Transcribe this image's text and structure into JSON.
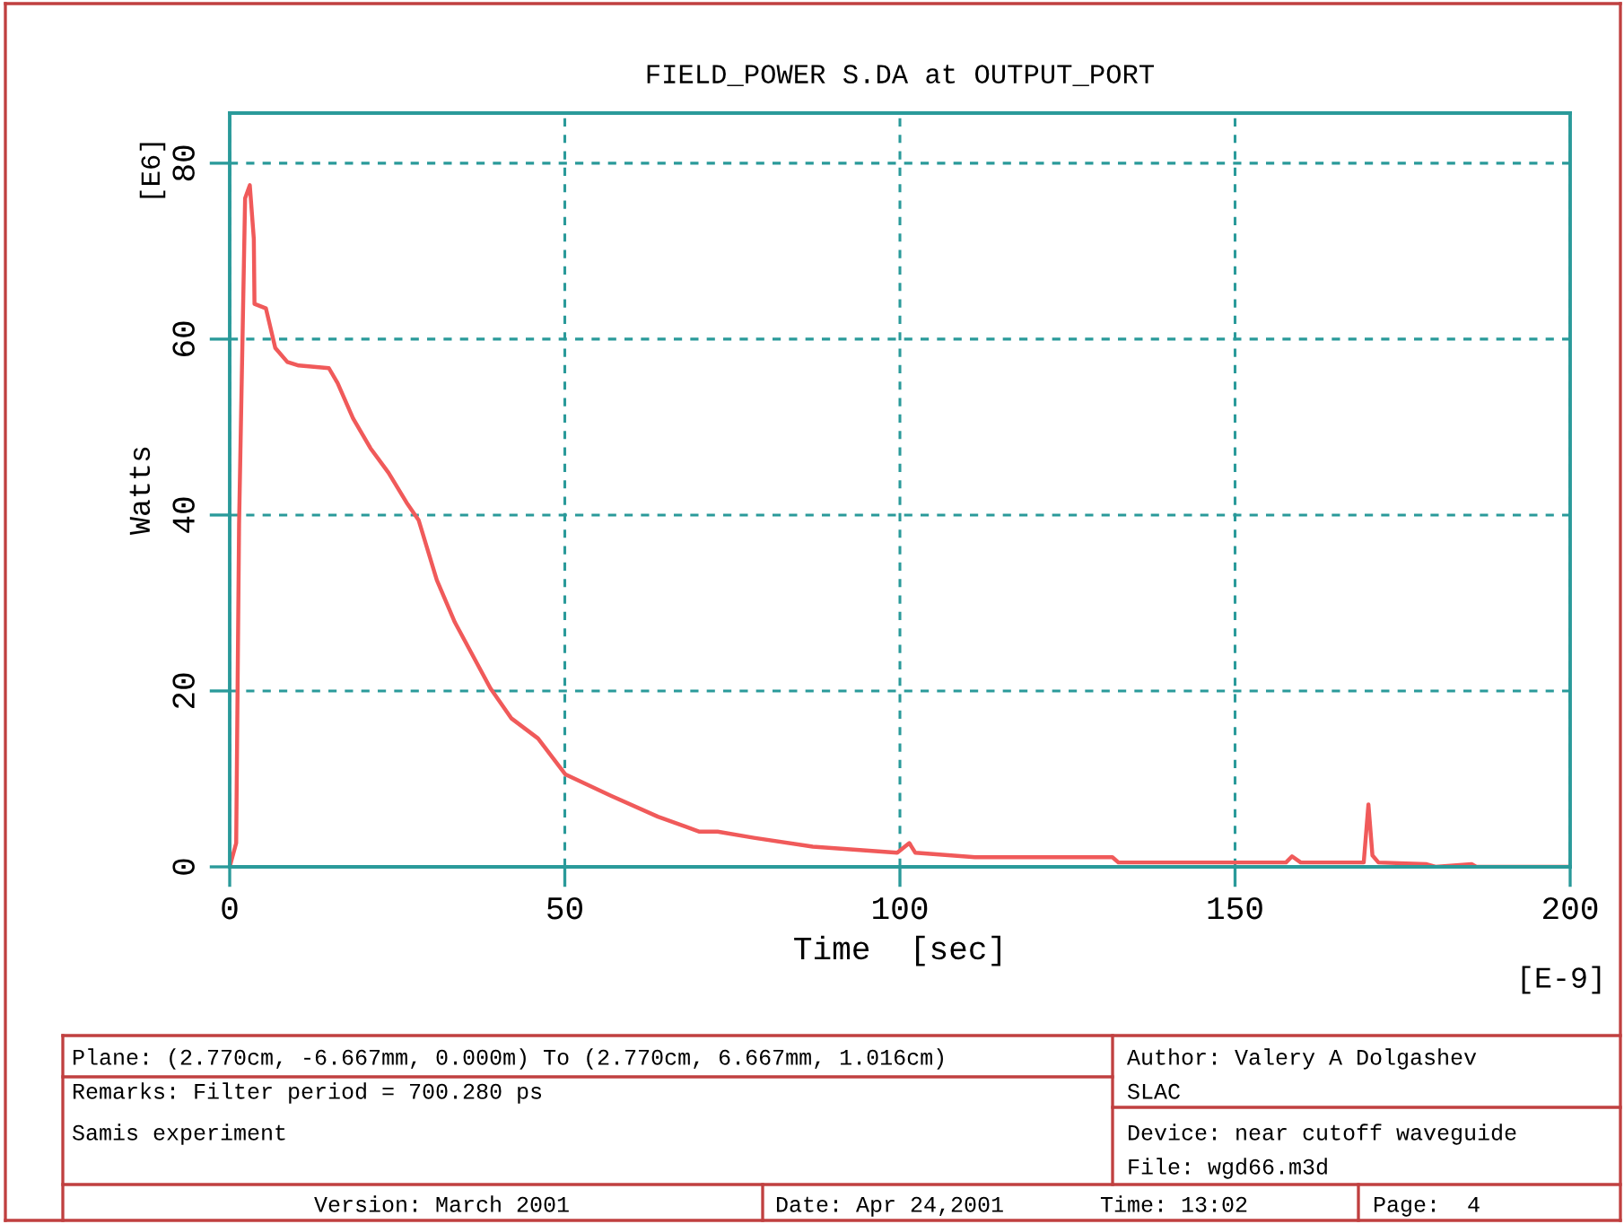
{
  "chart_data": {
    "type": "line",
    "title": "FIELD_POWER S.DA at OUTPUT_PORT",
    "xlabel": "Time  [sec]",
    "ylabel": "Watts",
    "x": [
      0,
      0.97,
      1.4,
      2.3,
      3.0,
      3.6,
      3.7,
      5.4,
      6.8,
      8.6,
      10.3,
      14.8,
      16.1,
      18.4,
      21,
      23.7,
      26.4,
      28.2,
      30.9,
      33.6,
      38.9,
      42,
      46,
      50.1,
      56.8,
      63.9,
      70.1,
      72.8,
      78.2,
      87,
      99.6,
      101.4,
      102.3,
      111.2,
      131.7,
      132.6,
      157.6,
      158.5,
      159.8,
      169.2,
      169.9,
      170.5,
      171.4,
      178.6,
      179.9,
      185.3,
      186,
      200
    ],
    "series": [
      {
        "color": "#f05a5a",
        "values": [
          0,
          2.7,
          39,
          76,
          77.5,
          71.4,
          64,
          63.5,
          59,
          57.4,
          57,
          56.7,
          55,
          51,
          47.6,
          44.8,
          41.4,
          39.4,
          32.6,
          27.8,
          20.3,
          16.9,
          14.6,
          10.5,
          8.1,
          5.7,
          4.0,
          4.0,
          3.3,
          2.3,
          1.6,
          2.7,
          1.6,
          1.1,
          1.1,
          0.5,
          0.5,
          1.2,
          0.5,
          0.5,
          7.1,
          1.3,
          0.5,
          0.3,
          0,
          0.3,
          0,
          0
        ]
      }
    ],
    "xlim": [
      0,
      200
    ],
    "ylim": [
      0,
      85.7
    ],
    "xticks": [
      0,
      50,
      100,
      150,
      200
    ],
    "yticks": [
      0,
      20,
      40,
      60,
      80
    ],
    "grid": true,
    "line_style": "solid",
    "marker": "none",
    "annotations": [
      "[E6]",
      "[E-9]",
      "Plane: (2.770cm, -6.667mm, 0.000m) To (2.770cm, 6.667mm, 1.016cm)",
      "Remarks: Filter period = 700.280 ps",
      "Samis experiment",
      "Author: Valery A Dolgashev",
      "SLAC",
      "Device: near cutoff waveguide",
      "File: wgd66.m3d",
      "Version: March 2001",
      "Date: Apr 24,2001",
      "Time: 13:02",
      "Page:  4"
    ]
  }
}
